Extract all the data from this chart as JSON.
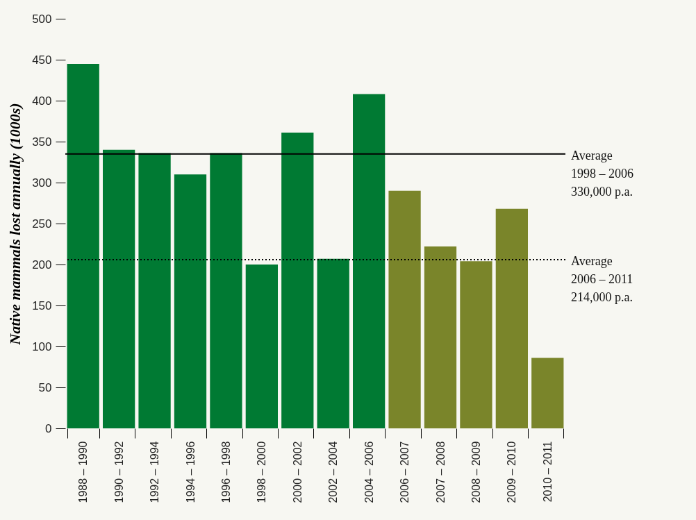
{
  "chart_data": {
    "type": "bar",
    "ylabel": "Native mammals lost annually (1000s)",
    "categories": [
      "1988 – 1990",
      "1990 – 1992",
      "1992 – 1994",
      "1994 – 1996",
      "1996 – 1998",
      "1998 – 2000",
      "2000 – 2002",
      "2002 – 2004",
      "2004 – 2006",
      "2006 – 2007",
      "2007 – 2008",
      "2008 – 2009",
      "2009 – 2010",
      "2010 – 2011"
    ],
    "values": [
      445,
      340,
      336,
      310,
      336,
      200,
      361,
      207,
      408,
      290,
      222,
      204,
      268,
      86
    ],
    "colors": [
      "#007a33",
      "#007a33",
      "#007a33",
      "#007a33",
      "#007a33",
      "#007a33",
      "#007a33",
      "#007a33",
      "#007a33",
      "#7a852a",
      "#7a852a",
      "#7a852a",
      "#7a852a",
      "#7a852a"
    ],
    "ylim": [
      0,
      500
    ],
    "yticks": [
      0,
      50,
      100,
      150,
      200,
      250,
      300,
      350,
      400,
      450,
      500
    ],
    "grid": false,
    "ref_lines": [
      {
        "axis": "y",
        "value": 335,
        "label": "Average\n1998 – 2006\n330,000 p.a.",
        "color": "#000000",
        "line_style": "solid"
      },
      {
        "axis": "y",
        "value": 206,
        "label": "Average\n2006 – 2011\n214,000 p.a.",
        "color": "#000000",
        "line_style": "dotted"
      }
    ]
  }
}
